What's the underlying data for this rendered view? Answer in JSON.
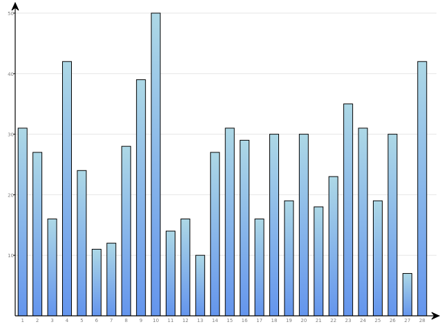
{
  "chart_data": {
    "type": "bar",
    "title": "",
    "xlabel": "",
    "ylabel": "",
    "categories": [
      "1",
      "2",
      "3",
      "4",
      "5",
      "6",
      "7",
      "8",
      "9",
      "10",
      "11",
      "12",
      "13",
      "14",
      "15",
      "16",
      "17",
      "18",
      "19",
      "20",
      "21",
      "22",
      "23",
      "24",
      "25",
      "26",
      "27",
      "28"
    ],
    "values": [
      31,
      27,
      16,
      42,
      24,
      11,
      12,
      28,
      39,
      50,
      14,
      16,
      10,
      27,
      31,
      29,
      16,
      30,
      19,
      30,
      18,
      23,
      35,
      31,
      19,
      30,
      7,
      42
    ],
    "ylim": [
      0,
      50
    ],
    "yticks": [
      10,
      20,
      30,
      40,
      50
    ],
    "ytick_labels": [
      "10",
      "20",
      "30",
      "40",
      "50"
    ],
    "grid": true,
    "legend": "none",
    "colors": {
      "bar_top": "#add8e6",
      "bar_bottom": "#6495ed",
      "bar_stroke": "#000000",
      "grid": "#e6e6e6",
      "axis": "#000000",
      "tick_label": "#808080"
    }
  }
}
